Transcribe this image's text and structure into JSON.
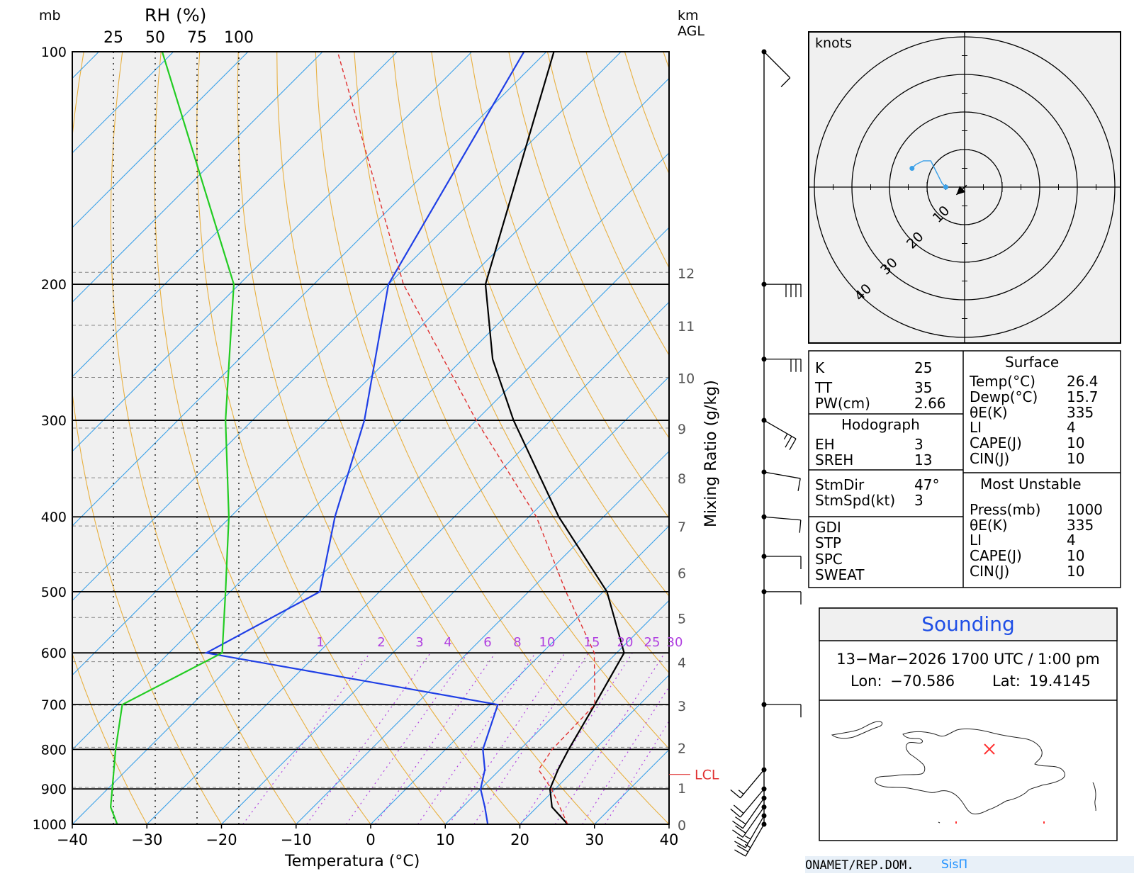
{
  "header": {
    "pressure_unit": "mb",
    "rh_label": "RH (%)",
    "rh_ticks": [
      "25",
      "50",
      "75",
      "100"
    ],
    "height_unit_line1": "km",
    "height_unit_line2": "AGL"
  },
  "chart_data": {
    "type": "skew-t",
    "xlabel": "Temperatura (°C)",
    "mixing_ratio_label": "Mixing Ratio (g/kg)",
    "x_ticks": [
      "−40",
      "−30",
      "−20",
      "−10",
      "0",
      "10",
      "20",
      "30",
      "40"
    ],
    "xlim": [
      -40,
      40
    ],
    "pressure_ticks": [
      "100",
      "200",
      "300",
      "400",
      "500",
      "600",
      "700",
      "800",
      "900",
      "1000"
    ],
    "height_ticks_km": [
      "0",
      "1",
      "2",
      "3",
      "4",
      "5",
      "6",
      "7",
      "8",
      "9",
      "10",
      "11",
      "12"
    ],
    "mixing_ratio_ticks": [
      "1",
      "2",
      "3",
      "4",
      "6",
      "8",
      "10",
      "15",
      "20",
      "25",
      "30"
    ],
    "lcl_label": "LCL",
    "series": [
      {
        "color": "#000000",
        "points": [
          [
            1000,
            26.4
          ],
          [
            950,
            22.0
          ],
          [
            900,
            19.3
          ],
          [
            850,
            17.8
          ],
          [
            800,
            16.5
          ],
          [
            700,
            14.0
          ],
          [
            600,
            11.0
          ],
          [
            500,
            0.5
          ],
          [
            400,
            -16.0
          ],
          [
            300,
            -35.0
          ],
          [
            250,
            -46.0
          ],
          [
            200,
            -57.0
          ],
          [
            100,
            -79.0
          ]
        ]
      },
      {
        "color": "#1f3fe6",
        "points": [
          [
            1000,
            15.7
          ],
          [
            950,
            13.0
          ],
          [
            900,
            10.0
          ],
          [
            850,
            8.0
          ],
          [
            800,
            5.0
          ],
          [
            700,
            1.0
          ],
          [
            600,
            -45.0
          ],
          [
            500,
            -38.0
          ],
          [
            400,
            -46.0
          ],
          [
            300,
            -55.0
          ],
          [
            200,
            -70.0
          ],
          [
            100,
            -83.0
          ]
        ]
      },
      {
        "color": "#e03030",
        "dashed": true,
        "points": [
          [
            1000,
            26.4
          ],
          [
            900,
            19.5
          ],
          [
            850,
            15.2
          ],
          [
            800,
            14.3
          ],
          [
            700,
            14.0
          ],
          [
            600,
            7.0
          ],
          [
            500,
            -5.0
          ],
          [
            400,
            -19.0
          ],
          [
            300,
            -40.0
          ],
          [
            200,
            -68.0
          ],
          [
            100,
            -108.0
          ]
        ]
      },
      {
        "color": "#22cc22",
        "points": [
          [
            1000,
            27
          ],
          [
            950,
            23
          ],
          [
            900,
            24
          ],
          [
            800,
            26
          ],
          [
            700,
            30
          ],
          [
            600,
            90
          ],
          [
            500,
            92
          ],
          [
            400,
            94
          ],
          [
            300,
            92
          ],
          [
            200,
            97
          ],
          [
            100,
            54
          ]
        ]
      }
    ],
    "wind_barbs": [
      {
        "p": 1000,
        "km": 0,
        "speed_kt": 25,
        "dir_deg": 30
      },
      {
        "p": 975,
        "km": 0.25,
        "speed_kt": 25,
        "dir_deg": 30
      },
      {
        "p": 950,
        "km": 0.5,
        "speed_kt": 20,
        "dir_deg": 35
      },
      {
        "p": 925,
        "km": 0.75,
        "speed_kt": 20,
        "dir_deg": 35
      },
      {
        "p": 900,
        "km": 1,
        "speed_kt": 20,
        "dir_deg": 40
      },
      {
        "p": 850,
        "km": 1.5,
        "speed_kt": 15,
        "dir_deg": 40
      },
      {
        "p": 700,
        "km": 3,
        "speed_kt": 10,
        "dir_deg": 270
      },
      {
        "p": 500,
        "km": 5.8,
        "speed_kt": 10,
        "dir_deg": 270
      },
      {
        "p": 450,
        "km": 6.8,
        "speed_kt": 10,
        "dir_deg": 270
      },
      {
        "p": 400,
        "km": 7.6,
        "speed_kt": 10,
        "dir_deg": 275
      },
      {
        "p": 350,
        "km": 8.5,
        "speed_kt": 10,
        "dir_deg": 280
      },
      {
        "p": 300,
        "km": 9.6,
        "speed_kt": 25,
        "dir_deg": 300
      },
      {
        "p": 250,
        "km": 10.9,
        "speed_kt": 30,
        "dir_deg": 270
      },
      {
        "p": 200,
        "km": 12.4,
        "speed_kt": 40,
        "dir_deg": 270
      },
      {
        "p": 100,
        "km": 16.5,
        "speed_kt": 10,
        "dir_deg": 315
      }
    ]
  },
  "hodograph": {
    "unit_label": "knots",
    "ring_labels": [
      "10",
      "20",
      "30",
      "40"
    ],
    "storm_motion": {
      "dir_deg": 47,
      "speed_kt": 3
    },
    "trace_kt": [
      [
        -5,
        0
      ],
      [
        -6,
        1
      ],
      [
        -7,
        3
      ],
      [
        -8,
        5
      ],
      [
        -9,
        7
      ],
      [
        -11,
        7
      ],
      [
        -13,
        6
      ],
      [
        -14,
        5
      ]
    ]
  },
  "indices": {
    "basic": [
      {
        "label": "K",
        "value": "25"
      },
      {
        "label": "TT",
        "value": "35"
      },
      {
        "label": "PW(cm)",
        "value": "2.66"
      }
    ],
    "hodograph_title": "Hodograph",
    "hodograph_rows": [
      {
        "label": "EH",
        "value": "3"
      },
      {
        "label": "SREH",
        "value": "13"
      }
    ],
    "storm_rows": [
      {
        "label": "StmDir",
        "value": "47°"
      },
      {
        "label": "StmSpd(kt)",
        "value": "3"
      }
    ],
    "other_labels": [
      "GDI",
      "STP",
      "SPC",
      "SWEAT"
    ],
    "surface_title": "Surface",
    "surface_rows": [
      {
        "label": "Temp(°C)",
        "value": "26.4"
      },
      {
        "label": "Dewp(°C)",
        "value": "15.7"
      },
      {
        "label": "θE(K)",
        "value": "335"
      },
      {
        "label": "LI",
        "value": "4"
      },
      {
        "label": "CAPE(J)",
        "value": "10"
      },
      {
        "label": "CIN(J)",
        "value": "10"
      }
    ],
    "unstable_title": "Most Unstable",
    "unstable_rows": [
      {
        "label": "Press(mb)",
        "value": "1000"
      },
      {
        "label": "θE(K)",
        "value": "335"
      },
      {
        "label": "LI",
        "value": "4"
      },
      {
        "label": "CAPE(J)",
        "value": "10"
      },
      {
        "label": "CIN(J)",
        "value": "10"
      }
    ]
  },
  "sounding": {
    "title": "Sounding",
    "datetime": "13−Mar−2026 1700 UTC / 1:00 pm",
    "lon_label": "Lon:",
    "lon": "−70.586",
    "lat_label": "Lat:",
    "lat": "19.4145",
    "marker_icon": "x-marker-icon"
  },
  "footer": {
    "org": "ONAMET/REP.DOM.",
    "brand": "SisΠ"
  },
  "colors": {
    "background": "#f0f0f0",
    "temperature": "#000000",
    "dewpoint": "#1f3fe6",
    "parcel": "#e03030",
    "rh": "#22cc22",
    "isotherm": "#3aa0e8",
    "dry_adiabat": "#e8b040",
    "mixing_ratio": "#b040e0",
    "hodograph": "#3aa0e8",
    "sounding_title": "#1f4fe6"
  }
}
